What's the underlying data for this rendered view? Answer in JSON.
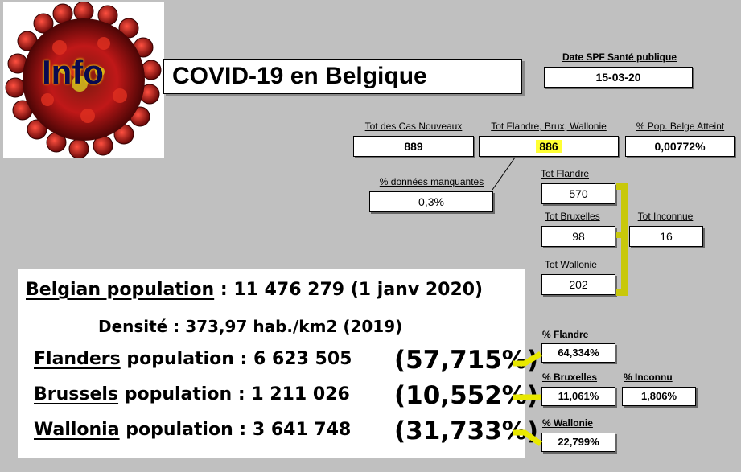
{
  "logo": {
    "text": "Info",
    "icon": "coronavirus-icon"
  },
  "title": "COVID-19 en Belgique",
  "date": {
    "label": "Date SPF Santé publique",
    "value": "15-03-20"
  },
  "totals": {
    "new_cases_label": "Tot des Cas Nouveaux",
    "new_cases_value": "889",
    "regions_label": "Tot Flandre, Brux, Wallonie",
    "regions_value": "886",
    "pop_pct_label": "% Pop. Belge Atteint",
    "pop_pct_value": "0,00772%"
  },
  "missing": {
    "label": "% données manquantes",
    "value": "0,3%"
  },
  "regions": {
    "flandre_label": "Tot Flandre",
    "flandre_value": "570",
    "bruxelles_label": "Tot Bruxelles",
    "bruxelles_value": "98",
    "wallonie_label": "Tot Wallonie",
    "wallonie_value": "202",
    "inconnue_label": "Tot Inconnue",
    "inconnue_value": "16"
  },
  "percents": {
    "flandre_label": "% Flandre",
    "flandre_value": "64,334%",
    "bruxelles_label": "% Bruxelles",
    "bruxelles_value": "11,061%",
    "inconnu_label": "% Inconnu",
    "inconnu_value": "1,806%",
    "wallonie_label": "% Wallonie",
    "wallonie_value": "22,799%"
  },
  "population": {
    "belgian_label": "Belgian population",
    "belgian_value": ": 11 476 279 (1 janv 2020)",
    "density": "Densité : 373,97 hab./km2 (2019)",
    "flanders_label": "Flanders",
    "flanders_value": "population : 6 623 505",
    "flanders_pct": "(57,715%)",
    "brussels_label": "Brussels",
    "brussels_value": "population : 1 211 026",
    "brussels_pct": "(10,552%)",
    "wallonia_label": "Wallonia",
    "wallonia_value": "population : 3 641 748",
    "wallonia_pct": "(31,733%)"
  },
  "colors": {
    "background": "#c0c0c0",
    "highlight": "#ffff33",
    "connector": "#c8c80a",
    "virus": "#b01010"
  }
}
